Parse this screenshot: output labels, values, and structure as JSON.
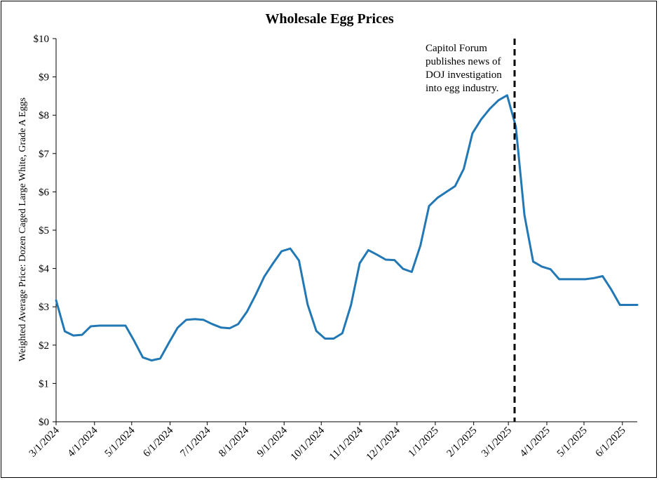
{
  "chart_data": {
    "type": "line",
    "title": "Wholesale Egg Prices",
    "xlabel": "",
    "ylabel": "Weighted Average Price: Dozen Caged Large White, Grade A Eggs",
    "ylim": [
      0,
      10
    ],
    "y_ticks": [
      0,
      1,
      2,
      3,
      4,
      5,
      6,
      7,
      8,
      9,
      10
    ],
    "y_tick_labels": [
      "$0",
      "$1",
      "$2",
      "$3",
      "$4",
      "$5",
      "$6",
      "$7",
      "$8",
      "$9",
      "$10"
    ],
    "x_tick_labels": [
      "3/1/2024",
      "4/1/2024",
      "5/1/2024",
      "6/1/2024",
      "7/1/2024",
      "8/1/2024",
      "9/1/2024",
      "10/1/2024",
      "11/1/2024",
      "12/1/2024",
      "1/1/2025",
      "2/1/2025",
      "3/1/2025",
      "4/1/2025",
      "5/1/2025",
      "6/1/2025"
    ],
    "grid": false,
    "color": "#2278b5",
    "series": [
      {
        "x": [
          "2024-03-01",
          "2024-03-08",
          "2024-03-15",
          "2024-03-22",
          "2024-03-29",
          "2024-04-05",
          "2024-04-12",
          "2024-04-19",
          "2024-04-26",
          "2024-05-03",
          "2024-05-10",
          "2024-05-17",
          "2024-05-24",
          "2024-05-31",
          "2024-06-07",
          "2024-06-14",
          "2024-06-21",
          "2024-06-28",
          "2024-07-05",
          "2024-07-12",
          "2024-07-19",
          "2024-07-26",
          "2024-08-02",
          "2024-08-09",
          "2024-08-16",
          "2024-08-23",
          "2024-08-30",
          "2024-09-06",
          "2024-09-13",
          "2024-09-20",
          "2024-09-27",
          "2024-10-04",
          "2024-10-11",
          "2024-10-18",
          "2024-10-25",
          "2024-11-01",
          "2024-11-08",
          "2024-11-15",
          "2024-11-22",
          "2024-11-29",
          "2024-12-06",
          "2024-12-13",
          "2024-12-20",
          "2024-12-27",
          "2025-01-03",
          "2025-01-10",
          "2025-01-17",
          "2025-01-24",
          "2025-01-31",
          "2025-02-07",
          "2025-02-14",
          "2025-02-21",
          "2025-02-28",
          "2025-03-07",
          "2025-03-14",
          "2025-03-21",
          "2025-03-28",
          "2025-04-04",
          "2025-04-11",
          "2025-04-18",
          "2025-04-25",
          "2025-05-02",
          "2025-05-09",
          "2025-05-16",
          "2025-05-23",
          "2025-05-30",
          "2025-06-06",
          "2025-06-13"
        ],
        "values": [
          3.17,
          2.36,
          2.25,
          2.27,
          2.49,
          2.51,
          2.51,
          2.51,
          2.51,
          2.11,
          1.68,
          1.6,
          1.65,
          2.06,
          2.45,
          2.66,
          2.68,
          2.66,
          2.55,
          2.46,
          2.44,
          2.55,
          2.87,
          3.31,
          3.79,
          4.13,
          4.45,
          4.52,
          4.21,
          3.06,
          2.37,
          2.17,
          2.17,
          2.31,
          3.05,
          4.14,
          4.48,
          4.36,
          4.23,
          4.22,
          3.99,
          3.91,
          4.6,
          5.63,
          5.85,
          6.0,
          6.15,
          6.6,
          7.53,
          7.89,
          8.17,
          8.39,
          8.52,
          7.7,
          5.39,
          4.18,
          4.05,
          3.98,
          3.72,
          3.72,
          3.72,
          3.72,
          3.75,
          3.8,
          3.45,
          3.05,
          3.05,
          3.05
        ]
      }
    ],
    "vline": {
      "date": "2025-03-06"
    },
    "annotation": [
      "Capitol Forum",
      "publishes  news of",
      "DOJ investigation",
      "into  egg industry."
    ]
  }
}
